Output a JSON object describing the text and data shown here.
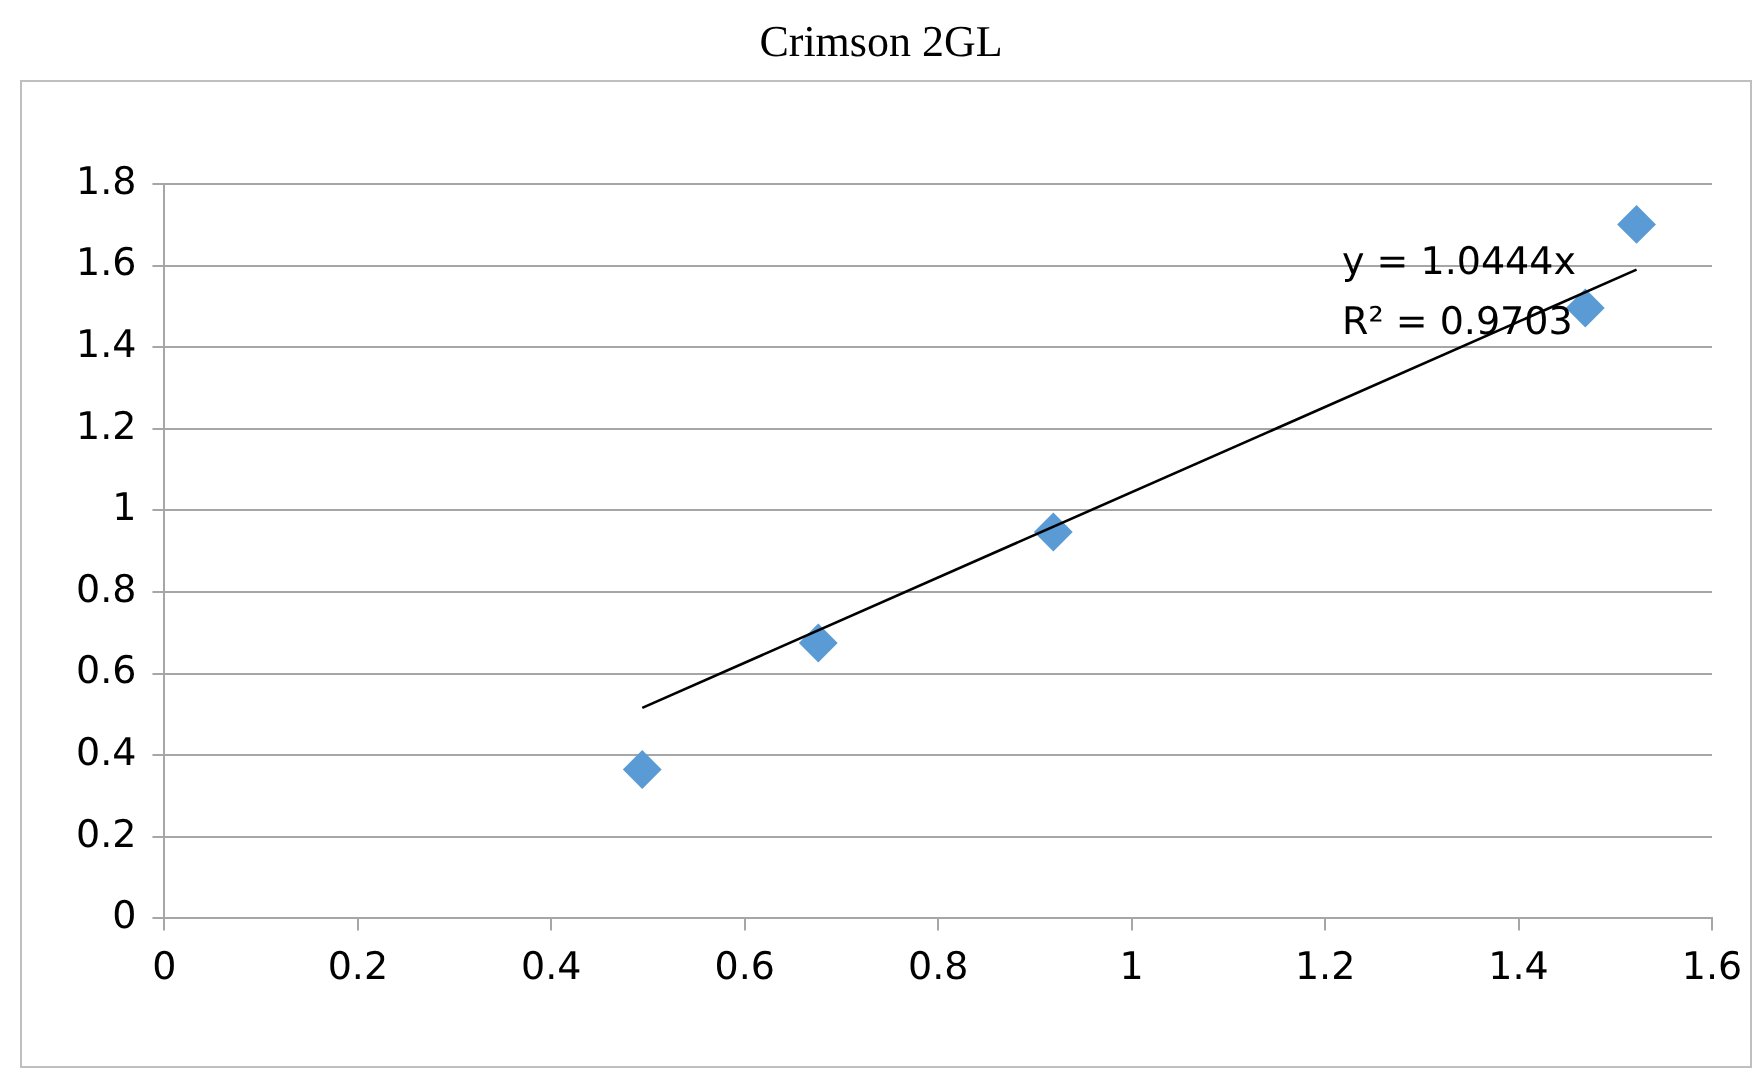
{
  "chart_data": {
    "type": "scatter",
    "title": "Crimson 2GL",
    "series": [
      {
        "color": "#5b9bd5",
        "marker": "diamond",
        "x": [
          0.494,
          0.676,
          0.919,
          1.469,
          1.522
        ],
        "values": [
          0.365,
          0.675,
          0.947,
          1.496,
          1.701
        ]
      },
      {
        "type": "line",
        "color": "#000000",
        "marker": "none",
        "x": [
          0.494,
          1.522
        ],
        "values": [
          0.516,
          1.59
        ]
      }
    ],
    "xlim": [
      0,
      1.6
    ],
    "xticks": [
      0,
      0.2,
      0.4,
      0.6,
      0.8,
      1,
      1.2,
      1.4,
      1.6
    ],
    "ylim": [
      0,
      1.8
    ],
    "yticks": [
      0,
      0.2,
      0.4,
      0.6,
      0.8,
      1,
      1.2,
      1.4,
      1.6,
      1.8
    ],
    "grid": "y",
    "legend": false,
    "annotations": [
      "y = 1.0444x",
      "R² = 0.9703"
    ]
  }
}
